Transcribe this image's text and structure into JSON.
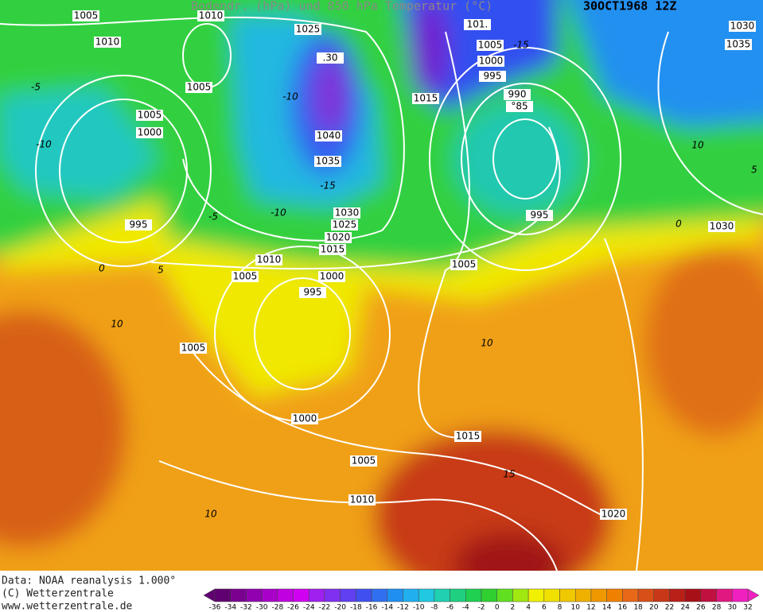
{
  "title": "Bodendr. (hPa) und 850 hPa Temperatur (°C)",
  "date": "30OCT1968 12Z",
  "footer": [
    "Data: NOAA reanalysis 1.000°",
    "(C) Wetterzentrale",
    "www.wetterzentrale.de"
  ],
  "isobar_labels": [
    "1005",
    "1010",
    "1010",
    "1025",
    "1005",
    "1005",
    "1000",
    "995",
    "1040",
    "1035",
    "1030",
    "1025",
    "1020",
    "1015",
    "1010",
    "1005",
    "1000",
    "995",
    "1015",
    "101.",
    "1005",
    "1000",
    "995",
    "990",
    "995",
    "1030",
    "1005",
    "1005",
    "1000",
    "1015",
    "1005",
    "1010",
    "1020",
    "1030",
    "1035",
    ".30",
    "°85"
  ],
  "temperature_labels": [
    "-5",
    "-10",
    "-5",
    "-10",
    "-15",
    "-15",
    "0",
    "5",
    "10",
    "10",
    "15",
    "10",
    "0",
    "10",
    "5",
    "-10"
  ],
  "colorbar": {
    "ticks": [
      -36,
      -34,
      -32,
      -30,
      -28,
      -26,
      -24,
      -22,
      -20,
      -18,
      -16,
      -14,
      -12,
      -10,
      -8,
      -6,
      -4,
      -2,
      0,
      2,
      4,
      6,
      8,
      10,
      12,
      14,
      16,
      18,
      20,
      22,
      24,
      26,
      28,
      30,
      32
    ],
    "colors": [
      "#600070",
      "#7a0090",
      "#9000b0",
      "#a800c8",
      "#c000e0",
      "#d000f0",
      "#a020f0",
      "#8030f0",
      "#6040f0",
      "#4050f0",
      "#3070f0",
      "#2090f0",
      "#20b0f0",
      "#20c8e0",
      "#20d0b0",
      "#20d080",
      "#20d050",
      "#30d030",
      "#60e020",
      "#a0e810",
      "#f0f000",
      "#f0e000",
      "#f0c800",
      "#f0b000",
      "#f09800",
      "#f08000",
      "#e86818",
      "#d85018",
      "#c83818",
      "#b82018",
      "#a81018",
      "#c01040",
      "#e01880",
      "#f020c0"
    ]
  }
}
